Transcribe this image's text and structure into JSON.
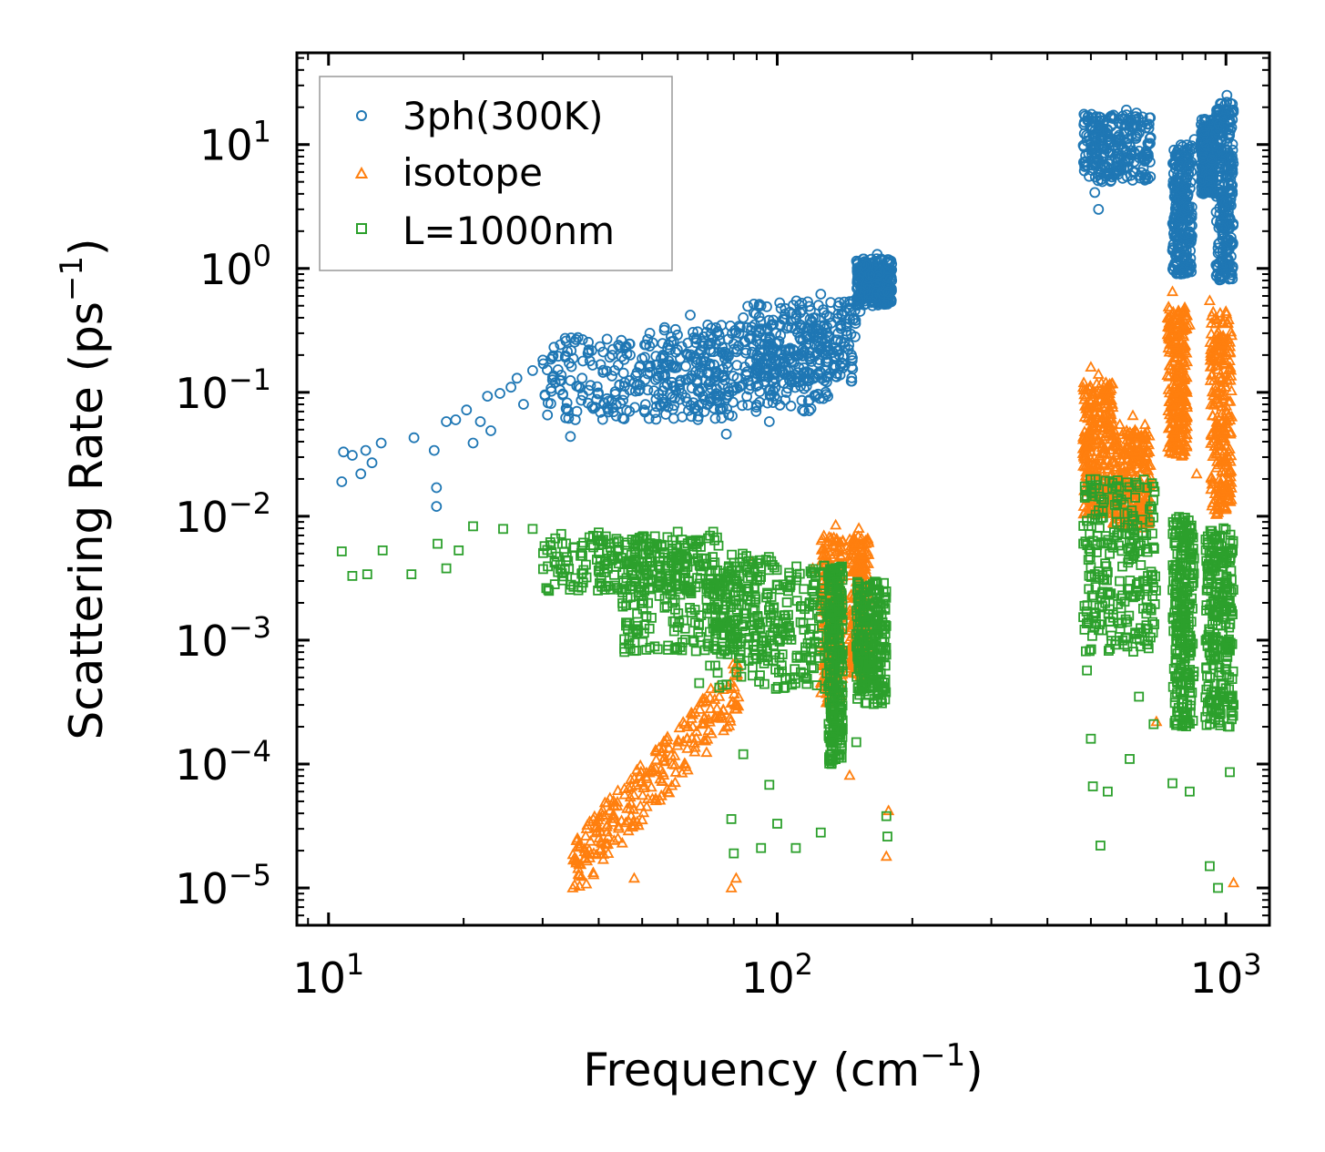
{
  "chart_data": {
    "type": "scatter",
    "xlabel": {
      "main": "Frequency (cm",
      "exp": "−1",
      "close": ")"
    },
    "ylabel": {
      "main": "Scattering Rate (ps",
      "exp": "−1",
      "close": ")"
    },
    "xscale": "log",
    "yscale": "log",
    "xlim": [
      8.5,
      1250
    ],
    "ylim": [
      5e-06,
      55
    ],
    "xticks": [
      {
        "value": 10,
        "base": "10",
        "exp": "1"
      },
      {
        "value": 100,
        "base": "10",
        "exp": "2"
      },
      {
        "value": 1000,
        "base": "10",
        "exp": "3"
      }
    ],
    "yticks": [
      {
        "value": 1e-05,
        "base": "10",
        "exp": "−5"
      },
      {
        "value": 0.0001,
        "base": "10",
        "exp": "−4"
      },
      {
        "value": 0.001,
        "base": "10",
        "exp": "−3"
      },
      {
        "value": 0.01,
        "base": "10",
        "exp": "−2"
      },
      {
        "value": 0.1,
        "base": "10",
        "exp": "−1"
      },
      {
        "value": 1,
        "base": "10",
        "exp": "0"
      },
      {
        "value": 10,
        "base": "10",
        "exp": "1"
      }
    ],
    "legend_position": "top-left",
    "series": [
      {
        "name": "3ph(300K)",
        "marker": "circle",
        "color": "#1f77b4",
        "points": [
          [
            10.8,
            0.033
          ],
          [
            10.7,
            0.019
          ],
          [
            11.3,
            0.031
          ],
          [
            11.8,
            0.022
          ],
          [
            12.1,
            0.034
          ],
          [
            12.5,
            0.027
          ],
          [
            13.1,
            0.039
          ],
          [
            15.5,
            0.043
          ],
          [
            17.2,
            0.034
          ],
          [
            17.4,
            0.017
          ],
          [
            17.4,
            0.012
          ],
          [
            18.3,
            0.058
          ],
          [
            19.2,
            0.06
          ],
          [
            20.3,
            0.072
          ],
          [
            21.0,
            0.039
          ],
          [
            21.8,
            0.058
          ],
          [
            22.6,
            0.093
          ],
          [
            23.0,
            0.049
          ],
          [
            24.1,
            0.098
          ],
          [
            25.5,
            0.11
          ],
          [
            26.3,
            0.13
          ],
          [
            27.2,
            0.08
          ],
          [
            28.5,
            0.15
          ],
          [
            30.1,
            0.17
          ],
          [
            32.0,
            0.12
          ],
          [
            34.6,
            0.044
          ],
          [
            38.0,
            0.22
          ],
          [
            43.0,
            0.075
          ],
          [
            52.0,
            0.3
          ],
          [
            58.0,
            0.28
          ],
          [
            64.0,
            0.42
          ],
          [
            70.0,
            0.35
          ],
          [
            77.0,
            0.046
          ],
          [
            84.0,
            0.4
          ],
          [
            92.0,
            0.5
          ],
          [
            96.0,
            0.058
          ],
          [
            108.0,
            0.43
          ],
          [
            125.0,
            0.62
          ],
          [
            145.0,
            0.54
          ],
          [
            153.0,
            0.45
          ],
          [
            160.0,
            0.62
          ],
          [
            167.0,
            1.3
          ],
          [
            177.0,
            1.1
          ],
          [
            500.0,
            10.0
          ],
          [
            510.0,
            4.1
          ],
          [
            520.0,
            3.0
          ],
          [
            545.0,
            13.0
          ],
          [
            575.0,
            9.5
          ],
          [
            600.0,
            19.0
          ],
          [
            630.0,
            16.0
          ],
          [
            660.0,
            8.5
          ],
          [
            760.0,
            1.4
          ],
          [
            785.0,
            2.6
          ],
          [
            805.0,
            1.2
          ],
          [
            850.0,
            11.0
          ],
          [
            895.0,
            16.0
          ],
          [
            930.0,
            7.5
          ],
          [
            980.0,
            1.2
          ],
          [
            1005.0,
            25.0
          ],
          [
            1030.0,
            18.0
          ]
        ],
        "clusters": [
          {
            "x": [
              30,
              80
            ],
            "y": [
              0.06,
              0.28
            ]
          },
          {
            "x": [
              55,
              130
            ],
            "y": [
              0.07,
              0.35
            ]
          },
          {
            "x": [
              85,
              150
            ],
            "y": [
              0.12,
              0.55
            ]
          },
          {
            "x": [
              150,
              180
            ],
            "y": [
              0.5,
              1.2
            ]
          },
          {
            "x": [
              480,
              680
            ],
            "y": [
              5.0,
              18.0
            ]
          },
          {
            "x": [
              760,
              840
            ],
            "y": [
              0.9,
              10.0
            ]
          },
          {
            "x": [
              880,
              940
            ],
            "y": [
              4.0,
              16.0
            ]
          },
          {
            "x": [
              950,
              1040
            ],
            "y": [
              0.8,
              22.0
            ]
          }
        ]
      },
      {
        "name": "isotope",
        "marker": "triangle",
        "color": "#ff7f0e",
        "points": [
          [
            35.0,
            1e-05
          ],
          [
            42.0,
            1.9e-05
          ],
          [
            48.0,
            1.2e-05
          ],
          [
            55.0,
            9e-05
          ],
          [
            63.0,
            0.00016
          ],
          [
            71.0,
            0.00028
          ],
          [
            79.0,
            1e-05
          ],
          [
            81.0,
            1.2e-05
          ],
          [
            88.0,
            0.0043
          ],
          [
            120.0,
            0.0038
          ],
          [
            135.0,
            0.0085
          ],
          [
            145.0,
            8.1e-05
          ],
          [
            152.0,
            0.008
          ],
          [
            160.0,
            0.00065
          ],
          [
            175.0,
            1.8e-05
          ],
          [
            177.0,
            4.2e-05
          ],
          [
            500.0,
            0.16
          ],
          [
            520.0,
            0.14
          ],
          [
            540.0,
            0.12
          ],
          [
            580.0,
            0.055
          ],
          [
            620.0,
            0.065
          ],
          [
            660.0,
            0.055
          ],
          [
            700.0,
            0.00022
          ],
          [
            760.0,
            0.65
          ],
          [
            830.0,
            0.35
          ],
          [
            860.0,
            0.022
          ],
          [
            920.0,
            0.55
          ],
          [
            1000.0,
            0.45
          ],
          [
            1040.0,
            1.1e-05
          ]
        ],
        "clusters": [
          {
            "x": [
              35,
              82
            ],
            "y": [
              1.2e-05,
              0.00035
            ],
            "trend": "diagonal"
          },
          {
            "x": [
              125,
              140
            ],
            "y": [
              0.0003,
              0.007
            ]
          },
          {
            "x": [
              145,
              160
            ],
            "y": [
              0.0005,
              0.007
            ]
          },
          {
            "x": [
              480,
              560
            ],
            "y": [
              0.01,
              0.12
            ]
          },
          {
            "x": [
              560,
              680
            ],
            "y": [
              0.008,
              0.05
            ]
          },
          {
            "x": [
              740,
              820
            ],
            "y": [
              0.03,
              0.5
            ]
          },
          {
            "x": [
              920,
              1030
            ],
            "y": [
              0.01,
              0.45
            ]
          }
        ]
      },
      {
        "name": "L=1000nm",
        "marker": "square",
        "color": "#2ca02c",
        "points": [
          [
            10.7,
            0.0052
          ],
          [
            11.3,
            0.0033
          ],
          [
            12.2,
            0.0034
          ],
          [
            13.2,
            0.0053
          ],
          [
            15.3,
            0.0034
          ],
          [
            17.5,
            0.006
          ],
          [
            18.3,
            0.0038
          ],
          [
            19.5,
            0.0053
          ],
          [
            21.0,
            0.0083
          ],
          [
            24.5,
            0.0079
          ],
          [
            28.5,
            0.0079
          ],
          [
            33.0,
            0.0072
          ],
          [
            40.0,
            0.0074
          ],
          [
            50.0,
            0.0068
          ],
          [
            60.0,
            0.0075
          ],
          [
            67.0,
            0.00045
          ],
          [
            72.0,
            0.0075
          ],
          [
            79.0,
            3.6e-05
          ],
          [
            80.0,
            1.9e-05
          ],
          [
            84.0,
            0.00012
          ],
          [
            92.0,
            2.1e-05
          ],
          [
            96.0,
            6.8e-05
          ],
          [
            100.0,
            3.3e-05
          ],
          [
            110.0,
            2.1e-05
          ],
          [
            125.0,
            2.8e-05
          ],
          [
            132.0,
            0.00011
          ],
          [
            150.0,
            0.00015
          ],
          [
            175.0,
            3.8e-05
          ],
          [
            176.0,
            2.6e-05
          ],
          [
            490.0,
            0.00057
          ],
          [
            500.0,
            0.00016
          ],
          [
            505.0,
            6.6e-05
          ],
          [
            525.0,
            2.2e-05
          ],
          [
            545.0,
            6e-05
          ],
          [
            610.0,
            0.00011
          ],
          [
            640.0,
            0.00035
          ],
          [
            690.0,
            0.00021
          ],
          [
            760.0,
            7e-05
          ],
          [
            830.0,
            6e-05
          ],
          [
            920.0,
            1.5e-05
          ],
          [
            960.0,
            1e-05
          ],
          [
            1020.0,
            8.6e-05
          ]
        ],
        "clusters": [
          {
            "x": [
              30,
              75
            ],
            "y": [
              0.0025,
              0.007
            ]
          },
          {
            "x": [
              45,
              100
            ],
            "y": [
              0.0008,
              0.005
            ]
          },
          {
            "x": [
              70,
              130
            ],
            "y": [
              0.0004,
              0.004
            ]
          },
          {
            "x": [
              130,
              140
            ],
            "y": [
              0.0001,
              0.004
            ]
          },
          {
            "x": [
              150,
              175
            ],
            "y": [
              0.0003,
              0.003
            ]
          },
          {
            "x": [
              480,
              700
            ],
            "y": [
              0.0008,
              0.02
            ]
          },
          {
            "x": [
              760,
              850
            ],
            "y": [
              0.0002,
              0.01
            ]
          },
          {
            "x": [
              900,
              1040
            ],
            "y": [
              0.0002,
              0.008
            ]
          }
        ]
      }
    ]
  }
}
